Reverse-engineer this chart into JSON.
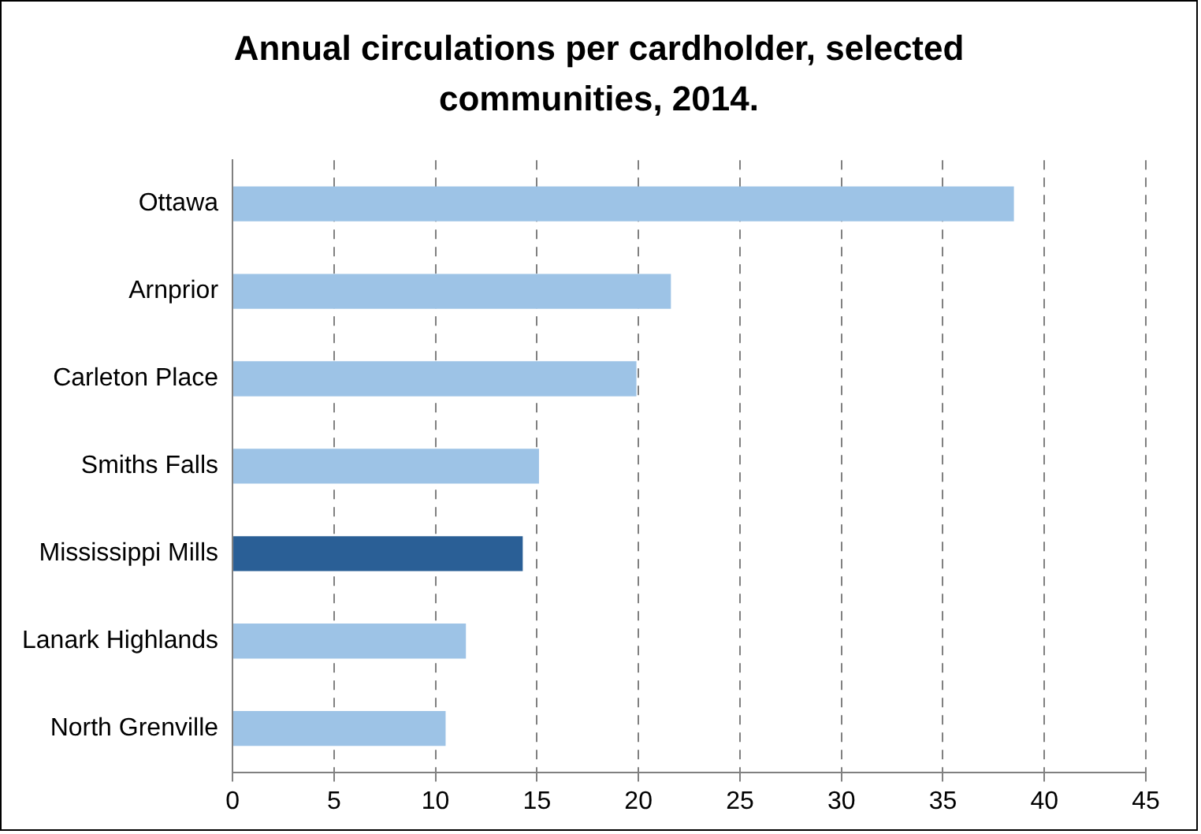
{
  "chart_data": {
    "type": "bar",
    "orientation": "horizontal",
    "title": "Annual circulations per cardholder, selected communities, 2014.",
    "categories": [
      "Ottawa",
      "Arnprior",
      "Carleton Place",
      "Smiths Falls",
      "Mississippi Mills",
      "Lanark Highlands",
      "North Grenville"
    ],
    "values": [
      38.5,
      21.6,
      19.9,
      15.1,
      14.3,
      11.5,
      10.5
    ],
    "colors": [
      "#9dc3e6",
      "#9dc3e6",
      "#9dc3e6",
      "#9dc3e6",
      "#2a5f96",
      "#9dc3e6",
      "#9dc3e6"
    ],
    "xlim": [
      0,
      45
    ],
    "xticks": [
      0,
      5,
      10,
      15,
      20,
      25,
      30,
      35,
      40,
      45
    ],
    "grid": "x",
    "legend": false
  }
}
